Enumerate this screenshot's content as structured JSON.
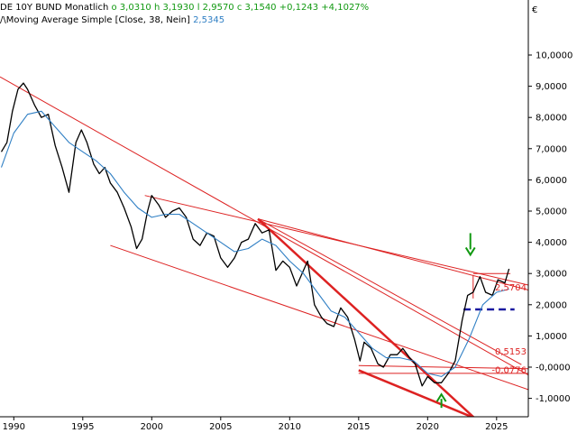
{
  "header": {
    "instrument": "DE 10Y BUND",
    "interval": "Monatlich",
    "open_label": "o",
    "open": "3,0310",
    "high_label": "h",
    "high": "3,1930",
    "low_label": "l",
    "low": "2,9570",
    "close_label": "c",
    "close": "3,1540",
    "change": "+0,1243",
    "change_pct": "+4,1027%",
    "indicator_symbol": "/\\",
    "indicator_name": "Moving Average Simple",
    "indicator_params": "[Close, 38, Nein]",
    "indicator_value": "2,5345",
    "currency": "€"
  },
  "chart_data": {
    "type": "line",
    "title": "DE 10Y BUND Monatlich",
    "xlabel": "",
    "ylabel": "",
    "xlim": [
      1989.0,
      2027.3
    ],
    "ylim": [
      -1.5,
      10.5
    ],
    "x_ticks": [
      "1990",
      "1995",
      "2000",
      "2005",
      "2010",
      "2015",
      "2020",
      "2025"
    ],
    "y_ticks": [
      "10,0000",
      "9,0000",
      "8,0000",
      "7,0000",
      "6,0000",
      "5,0000",
      "4,0000",
      "3,0000",
      "2,0000",
      "1,0000",
      "-0,0000",
      "-1,0000"
    ],
    "series": [
      {
        "name": "DE 10Y BUND",
        "color": "#000000",
        "points": [
          [
            1989.1,
            6.9
          ],
          [
            1989.5,
            7.2
          ],
          [
            1989.9,
            8.2
          ],
          [
            1990.3,
            8.9
          ],
          [
            1990.7,
            9.1
          ],
          [
            1991.0,
            8.9
          ],
          [
            1991.5,
            8.4
          ],
          [
            1992.0,
            8.0
          ],
          [
            1992.5,
            8.1
          ],
          [
            1993.0,
            7.1
          ],
          [
            1993.5,
            6.4
          ],
          [
            1994.0,
            5.6
          ],
          [
            1994.5,
            7.2
          ],
          [
            1994.9,
            7.6
          ],
          [
            1995.3,
            7.2
          ],
          [
            1995.8,
            6.5
          ],
          [
            1996.2,
            6.2
          ],
          [
            1996.6,
            6.4
          ],
          [
            1997.0,
            5.9
          ],
          [
            1997.5,
            5.6
          ],
          [
            1998.0,
            5.1
          ],
          [
            1998.5,
            4.5
          ],
          [
            1998.9,
            3.8
          ],
          [
            1999.3,
            4.1
          ],
          [
            1999.7,
            5.0
          ],
          [
            2000.0,
            5.5
          ],
          [
            2000.5,
            5.2
          ],
          [
            2001.0,
            4.8
          ],
          [
            2001.5,
            5.0
          ],
          [
            2002.0,
            5.1
          ],
          [
            2002.5,
            4.8
          ],
          [
            2003.0,
            4.1
          ],
          [
            2003.5,
            3.9
          ],
          [
            2004.0,
            4.3
          ],
          [
            2004.5,
            4.2
          ],
          [
            2005.0,
            3.5
          ],
          [
            2005.5,
            3.2
          ],
          [
            2006.0,
            3.5
          ],
          [
            2006.5,
            4.0
          ],
          [
            2007.0,
            4.1
          ],
          [
            2007.5,
            4.6
          ],
          [
            2008.0,
            4.3
          ],
          [
            2008.5,
            4.4
          ],
          [
            2009.0,
            3.1
          ],
          [
            2009.5,
            3.4
          ],
          [
            2010.0,
            3.2
          ],
          [
            2010.5,
            2.6
          ],
          [
            2011.0,
            3.1
          ],
          [
            2011.3,
            3.4
          ],
          [
            2011.8,
            2.0
          ],
          [
            2012.3,
            1.6
          ],
          [
            2012.7,
            1.4
          ],
          [
            2013.2,
            1.3
          ],
          [
            2013.7,
            1.9
          ],
          [
            2014.2,
            1.6
          ],
          [
            2014.7,
            0.9
          ],
          [
            2015.1,
            0.2
          ],
          [
            2015.4,
            0.8
          ],
          [
            2015.9,
            0.6
          ],
          [
            2016.4,
            0.1
          ],
          [
            2016.8,
            0.0
          ],
          [
            2017.3,
            0.4
          ],
          [
            2017.8,
            0.4
          ],
          [
            2018.2,
            0.6
          ],
          [
            2018.7,
            0.3
          ],
          [
            2019.1,
            0.1
          ],
          [
            2019.6,
            -0.6
          ],
          [
            2020.0,
            -0.3
          ],
          [
            2020.5,
            -0.5
          ],
          [
            2021.0,
            -0.5
          ],
          [
            2021.5,
            -0.2
          ],
          [
            2022.0,
            0.2
          ],
          [
            2022.5,
            1.5
          ],
          [
            2022.9,
            2.3
          ],
          [
            2023.3,
            2.4
          ],
          [
            2023.8,
            2.9
          ],
          [
            2024.2,
            2.4
          ],
          [
            2024.7,
            2.3
          ],
          [
            2025.1,
            2.8
          ],
          [
            2025.6,
            2.7
          ],
          [
            2025.9,
            3.15
          ]
        ]
      },
      {
        "name": "Moving Average Simple",
        "color": "#2f7fc4",
        "points": [
          [
            1989.1,
            6.4
          ],
          [
            1990.0,
            7.5
          ],
          [
            1991.0,
            8.1
          ],
          [
            1992.0,
            8.2
          ],
          [
            1993.0,
            7.7
          ],
          [
            1994.0,
            7.2
          ],
          [
            1995.0,
            6.9
          ],
          [
            1996.0,
            6.6
          ],
          [
            1997.0,
            6.2
          ],
          [
            1998.0,
            5.6
          ],
          [
            1999.0,
            5.1
          ],
          [
            2000.0,
            4.8
          ],
          [
            2001.0,
            4.9
          ],
          [
            2002.0,
            4.9
          ],
          [
            2003.0,
            4.6
          ],
          [
            2004.0,
            4.3
          ],
          [
            2005.0,
            4.0
          ],
          [
            2006.0,
            3.7
          ],
          [
            2007.0,
            3.8
          ],
          [
            2008.0,
            4.1
          ],
          [
            2009.0,
            3.9
          ],
          [
            2010.0,
            3.4
          ],
          [
            2011.0,
            3.0
          ],
          [
            2012.0,
            2.4
          ],
          [
            2013.0,
            1.8
          ],
          [
            2014.0,
            1.6
          ],
          [
            2015.0,
            1.1
          ],
          [
            2016.0,
            0.6
          ],
          [
            2017.0,
            0.3
          ],
          [
            2018.0,
            0.3
          ],
          [
            2019.0,
            0.2
          ],
          [
            2020.0,
            -0.2
          ],
          [
            2021.0,
            -0.3
          ],
          [
            2022.0,
            0.0
          ],
          [
            2023.0,
            0.9
          ],
          [
            2024.0,
            2.0
          ],
          [
            2025.0,
            2.4
          ],
          [
            2025.9,
            2.5
          ]
        ]
      }
    ],
    "trendlines": [
      {
        "color": "#dd2222",
        "width": 1,
        "from": [
          1989.0,
          9.3
        ],
        "to": [
          2027.3,
          -0.25
        ]
      },
      {
        "color": "#dd2222",
        "width": 1,
        "from": [
          1999.5,
          5.5
        ],
        "to": [
          2027.3,
          2.63
        ]
      },
      {
        "color": "#dd2222",
        "width": 1,
        "from": [
          1997.0,
          3.9
        ],
        "to": [
          2027.3,
          -0.72
        ]
      },
      {
        "color": "#dd2222",
        "width": 1,
        "from": [
          2007.7,
          4.75
        ],
        "to": [
          2027.3,
          2.47
        ]
      },
      {
        "color": "#dd2222",
        "width": 1,
        "from": [
          2007.7,
          4.75
        ],
        "to": [
          2026.8,
          0.08
        ]
      },
      {
        "color": "#dd2222",
        "width": 1,
        "from": [
          2015.0,
          0.05
        ],
        "to": [
          2027.3,
          -0.05
        ]
      },
      {
        "color": "#dd2222",
        "width": 1,
        "from": [
          2015.0,
          -0.2
        ],
        "to": [
          2027.3,
          -0.2
        ]
      },
      {
        "color": "#dd2222",
        "width": 2.5,
        "from": [
          2007.7,
          4.75
        ],
        "to": [
          2023.4,
          -1.63
        ]
      },
      {
        "color": "#dd2222",
        "width": 2.5,
        "from": [
          2015.0,
          -0.1
        ],
        "to": [
          2023.4,
          -1.63
        ]
      },
      {
        "color": "#dd2222",
        "width": 1,
        "from": [
          2023.3,
          3.0
        ],
        "to": [
          2026.0,
          3.0
        ]
      },
      {
        "color": "#dd2222",
        "width": 1,
        "from": [
          2023.3,
          2.95
        ],
        "to": [
          2023.3,
          2.2
        ]
      },
      {
        "color": "#1a1aa0",
        "width": 2.5,
        "dashed": true,
        "from": [
          2022.6,
          1.85
        ],
        "to": [
          2026.3,
          1.85
        ]
      }
    ],
    "level_labels": [
      {
        "text": "2,5704",
        "value": 2.5704,
        "color": "#dd2222"
      },
      {
        "text": "0,5153",
        "value": 0.5153,
        "color": "#dd2222"
      },
      {
        "text": "-0,0776",
        "value": -0.0776,
        "color": "#dd2222"
      }
    ],
    "arrows": [
      {
        "direction": "down",
        "x": 2023.1,
        "y": 3.6,
        "color": "#119911"
      },
      {
        "direction": "up",
        "x": 2021.0,
        "y": -0.9,
        "color": "#119911"
      }
    ],
    "grid": false,
    "legend": "top-left"
  }
}
